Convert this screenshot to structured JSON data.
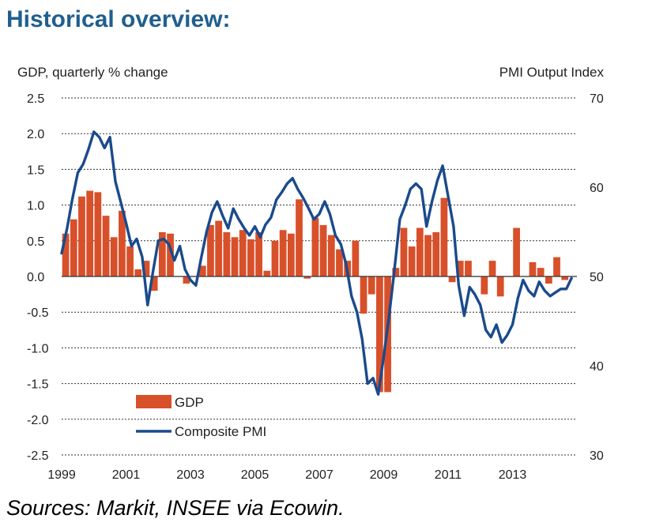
{
  "title": "Historical overview:",
  "source": "Sources: Markit, INSEE via Ecowin.",
  "colors": {
    "gdp": "#d8502a",
    "pmi": "#1a4a8c",
    "title": "#1f5f8f"
  },
  "chart_data": {
    "type": "bar+line",
    "ylabel_left": "GDP, quarterly % change",
    "ylabel_right": "PMI Output  Index",
    "x_ticks": [
      "1999",
      "2001",
      "2003",
      "2005",
      "2007",
      "2009",
      "2011",
      "2013"
    ],
    "y_left_ticks": [
      "2.5",
      "2.0",
      "1.5",
      "1.0",
      "0.5",
      "0.0",
      "-0.5",
      "-1.0",
      "-1.5",
      "-2.0",
      "-2.5"
    ],
    "y_right_ticks": [
      "70",
      "60",
      "50",
      "40",
      "30"
    ],
    "ylim_left": [
      -2.5,
      2.5
    ],
    "ylim_right": [
      30,
      70
    ],
    "xlim": [
      1999,
      2015
    ],
    "grid": "horizontal dashed",
    "legend": {
      "position": "bottom-left",
      "entries": [
        "GDP",
        "Composite PMI"
      ]
    },
    "series": [
      {
        "name": "GDP",
        "type": "bar",
        "x": [
          1999.0,
          1999.25,
          1999.5,
          1999.75,
          2000.0,
          2000.25,
          2000.5,
          2000.75,
          2001.0,
          2001.25,
          2001.5,
          2001.75,
          2002.0,
          2002.25,
          2002.5,
          2002.75,
          2003.0,
          2003.25,
          2003.5,
          2003.75,
          2004.0,
          2004.25,
          2004.5,
          2004.75,
          2005.0,
          2005.25,
          2005.5,
          2005.75,
          2006.0,
          2006.25,
          2006.5,
          2006.75,
          2007.0,
          2007.25,
          2007.5,
          2007.75,
          2008.0,
          2008.25,
          2008.5,
          2008.75,
          2009.0,
          2009.25,
          2009.5,
          2009.75,
          2010.0,
          2010.25,
          2010.5,
          2010.75,
          2011.0,
          2011.25,
          2011.5,
          2011.75,
          2012.0,
          2012.25,
          2012.5,
          2012.75,
          2013.0,
          2013.25,
          2013.5,
          2013.75,
          2014.0,
          2014.25,
          2014.5
        ],
        "values": [
          0.6,
          0.8,
          1.12,
          1.2,
          1.18,
          0.85,
          0.55,
          0.92,
          0.42,
          0.1,
          0.22,
          -0.2,
          0.62,
          0.6,
          0.0,
          -0.1,
          0.0,
          0.15,
          0.72,
          0.78,
          0.62,
          0.55,
          0.65,
          0.52,
          0.62,
          0.08,
          0.5,
          0.65,
          0.6,
          1.08,
          -0.03,
          0.82,
          0.72,
          0.58,
          0.38,
          0.22,
          0.5,
          -0.52,
          -0.25,
          -1.62,
          -1.62,
          0.12,
          0.68,
          0.42,
          0.68,
          0.58,
          0.62,
          1.1,
          -0.08,
          0.22,
          0.22,
          0.0,
          -0.25,
          0.22,
          -0.28,
          0.0,
          0.68,
          0.0,
          0.2,
          0.12,
          -0.1,
          0.27,
          -0.05
        ]
      },
      {
        "name": "Composite PMI",
        "type": "line",
        "x": [
          1999.0,
          1999.17,
          1999.33,
          1999.5,
          1999.67,
          1999.83,
          2000.0,
          2000.17,
          2000.33,
          2000.5,
          2000.67,
          2000.83,
          2001.0,
          2001.17,
          2001.33,
          2001.5,
          2001.67,
          2001.83,
          2002.0,
          2002.17,
          2002.33,
          2002.5,
          2002.67,
          2002.83,
          2003.0,
          2003.17,
          2003.33,
          2003.5,
          2003.67,
          2003.83,
          2004.0,
          2004.17,
          2004.33,
          2004.5,
          2004.67,
          2004.83,
          2005.0,
          2005.17,
          2005.33,
          2005.5,
          2005.67,
          2005.83,
          2006.0,
          2006.17,
          2006.33,
          2006.5,
          2006.67,
          2006.83,
          2007.0,
          2007.17,
          2007.33,
          2007.5,
          2007.67,
          2007.83,
          2008.0,
          2008.17,
          2008.33,
          2008.5,
          2008.67,
          2008.83,
          2009.0,
          2009.17,
          2009.33,
          2009.5,
          2009.67,
          2009.83,
          2010.0,
          2010.17,
          2010.33,
          2010.5,
          2010.67,
          2010.83,
          2011.0,
          2011.17,
          2011.33,
          2011.5,
          2011.67,
          2011.83,
          2012.0,
          2012.17,
          2012.33,
          2012.5,
          2012.67,
          2012.83,
          2013.0,
          2013.17,
          2013.33,
          2013.5,
          2013.67,
          2013.83,
          2014.0,
          2014.17,
          2014.33,
          2014.5,
          2014.67,
          2014.83
        ],
        "values": [
          52.6,
          55.4,
          58.6,
          61.6,
          62.6,
          64.2,
          66.2,
          65.6,
          64.4,
          65.6,
          60.6,
          58.4,
          56.0,
          53.4,
          54.2,
          52.2,
          46.8,
          50.4,
          54.0,
          54.2,
          53.6,
          51.8,
          53.4,
          50.8,
          49.6,
          49.0,
          52.0,
          55.0,
          57.2,
          58.4,
          56.8,
          55.4,
          57.6,
          56.4,
          55.4,
          54.6,
          55.6,
          54.4,
          55.8,
          56.6,
          58.6,
          59.4,
          60.4,
          61.0,
          59.8,
          58.8,
          57.6,
          56.4,
          57.0,
          58.4,
          57.0,
          54.6,
          53.6,
          51.4,
          47.8,
          46.0,
          43.0,
          38.0,
          38.6,
          36.8,
          41.0,
          45.6,
          50.6,
          56.4,
          58.0,
          59.8,
          60.4,
          59.8,
          55.6,
          58.4,
          60.8,
          62.4,
          59.0,
          55.6,
          49.0,
          45.6,
          48.8,
          48.0,
          46.8,
          44.0,
          43.2,
          44.6,
          42.6,
          43.4,
          44.6,
          47.6,
          49.6,
          48.4,
          47.8,
          49.4,
          48.4,
          47.8,
          48.2,
          48.6,
          48.6,
          49.8
        ]
      }
    ]
  }
}
